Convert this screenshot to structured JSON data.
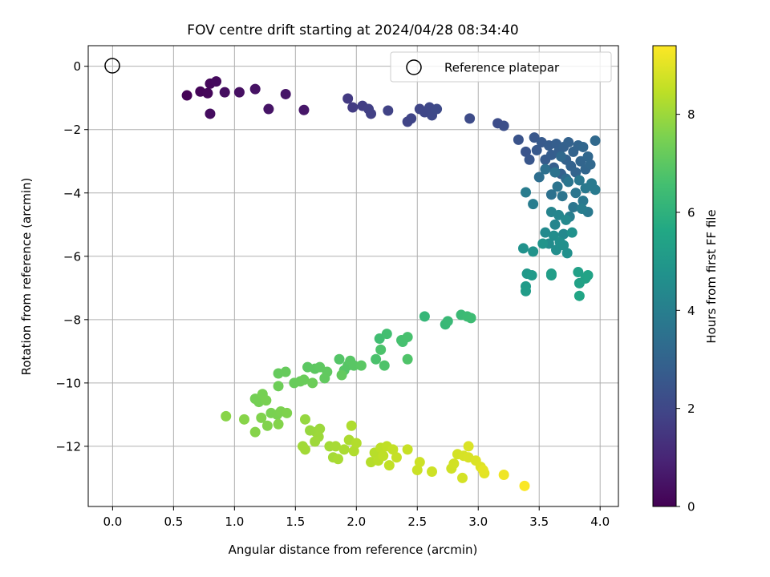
{
  "chart_data": {
    "type": "scatter",
    "title": "FOV centre drift starting at 2024/04/28 08:34:40",
    "xlabel": "Angular distance from reference (arcmin)",
    "ylabel": "Rotation from reference (arcmin)",
    "xlim": [
      -0.2,
      4.15
    ],
    "ylim": [
      -13.9,
      0.65
    ],
    "xticks": [
      "0.0",
      "0.5",
      "1.0",
      "1.5",
      "2.0",
      "2.5",
      "3.0",
      "3.5",
      "4.0"
    ],
    "yticks": [
      "0",
      "−2",
      "−4",
      "−6",
      "−8",
      "−10",
      "−12"
    ],
    "grid": true,
    "legend": {
      "placement": "top-right",
      "entries": [
        "Reference platepar"
      ]
    },
    "reference_point": {
      "x": 0.0,
      "y": 0.0
    },
    "colorbar": {
      "label": "Hours from first FF file",
      "colormap": "viridis",
      "range": [
        0,
        9.4
      ],
      "ticks": [
        "0",
        "2",
        "4",
        "6",
        "8"
      ]
    },
    "points": [
      [
        0.61,
        -0.92,
        0.05
      ],
      [
        0.72,
        -0.8,
        0.1
      ],
      [
        0.78,
        -0.85,
        0.15
      ],
      [
        0.8,
        -0.55,
        0.2
      ],
      [
        0.85,
        -0.48,
        0.25
      ],
      [
        0.8,
        -1.5,
        0.3
      ],
      [
        0.92,
        -0.82,
        0.35
      ],
      [
        1.04,
        -0.82,
        0.4
      ],
      [
        1.17,
        -0.72,
        0.45
      ],
      [
        1.28,
        -1.35,
        0.5
      ],
      [
        1.42,
        -0.88,
        0.55
      ],
      [
        1.57,
        -1.38,
        0.6
      ],
      [
        1.93,
        -1.02,
        1.6
      ],
      [
        1.97,
        -1.3,
        1.65
      ],
      [
        2.05,
        -1.25,
        1.7
      ],
      [
        2.1,
        -1.35,
        1.75
      ],
      [
        2.12,
        -1.5,
        1.8
      ],
      [
        2.26,
        -1.4,
        1.85
      ],
      [
        2.42,
        -1.75,
        1.9
      ],
      [
        2.45,
        -1.65,
        1.92
      ],
      [
        2.52,
        -1.35,
        1.95
      ],
      [
        2.56,
        -1.45,
        2.0
      ],
      [
        2.6,
        -1.3,
        2.02
      ],
      [
        2.62,
        -1.55,
        2.05
      ],
      [
        2.66,
        -1.35,
        2.08
      ],
      [
        2.93,
        -1.65,
        2.15
      ],
      [
        3.16,
        -1.8,
        2.2
      ],
      [
        3.21,
        -1.88,
        2.25
      ],
      [
        3.33,
        -2.32,
        2.4
      ],
      [
        3.39,
        -2.7,
        2.45
      ],
      [
        3.42,
        -2.95,
        2.5
      ],
      [
        3.46,
        -2.25,
        2.55
      ],
      [
        3.48,
        -2.65,
        2.6
      ],
      [
        3.52,
        -2.4,
        2.65
      ],
      [
        3.55,
        -2.95,
        2.7
      ],
      [
        3.58,
        -2.5,
        2.72
      ],
      [
        3.6,
        -2.8,
        2.75
      ],
      [
        3.62,
        -3.2,
        2.78
      ],
      [
        3.64,
        -2.45,
        2.8
      ],
      [
        3.66,
        -2.7,
        2.82
      ],
      [
        3.68,
        -3.4,
        2.85
      ],
      [
        3.7,
        -2.55,
        2.88
      ],
      [
        3.72,
        -2.95,
        2.9
      ],
      [
        3.74,
        -2.4,
        2.92
      ],
      [
        3.76,
        -3.15,
        2.95
      ],
      [
        3.78,
        -2.7,
        2.98
      ],
      [
        3.8,
        -3.35,
        3.0
      ],
      [
        3.82,
        -2.5,
        3.02
      ],
      [
        3.84,
        -3.0,
        3.05
      ],
      [
        3.86,
        -2.55,
        3.08
      ],
      [
        3.88,
        -3.25,
        3.1
      ],
      [
        3.9,
        -2.85,
        3.12
      ],
      [
        3.92,
        -3.1,
        3.15
      ],
      [
        3.96,
        -2.35,
        3.18
      ],
      [
        3.68,
        -2.85,
        3.2
      ],
      [
        3.72,
        -3.55,
        3.22
      ],
      [
        3.5,
        -3.5,
        3.4
      ],
      [
        3.55,
        -3.25,
        3.45
      ],
      [
        3.6,
        -4.05,
        3.5
      ],
      [
        3.63,
        -3.35,
        3.55
      ],
      [
        3.65,
        -3.8,
        3.6
      ],
      [
        3.69,
        -4.1,
        3.62
      ],
      [
        3.74,
        -3.65,
        3.65
      ],
      [
        3.78,
        -4.45,
        3.68
      ],
      [
        3.8,
        -4.0,
        3.7
      ],
      [
        3.83,
        -3.6,
        3.72
      ],
      [
        3.86,
        -4.25,
        3.75
      ],
      [
        3.88,
        -3.85,
        3.78
      ],
      [
        3.9,
        -4.6,
        3.8
      ],
      [
        3.93,
        -3.7,
        3.82
      ],
      [
        3.96,
        -3.9,
        3.85
      ],
      [
        3.39,
        -3.98,
        3.9
      ],
      [
        3.45,
        -4.35,
        3.92
      ],
      [
        3.85,
        -4.5,
        3.95
      ],
      [
        3.75,
        -4.75,
        3.98
      ],
      [
        3.6,
        -4.6,
        4.2
      ],
      [
        3.63,
        -5.0,
        4.25
      ],
      [
        3.66,
        -4.7,
        4.3
      ],
      [
        3.7,
        -5.3,
        4.35
      ],
      [
        3.72,
        -4.85,
        4.4
      ],
      [
        3.55,
        -5.25,
        4.45
      ],
      [
        3.58,
        -5.6,
        4.5
      ],
      [
        3.62,
        -5.35,
        4.55
      ],
      [
        3.64,
        -5.8,
        4.6
      ],
      [
        3.67,
        -5.55,
        4.62
      ],
      [
        3.7,
        -5.65,
        4.65
      ],
      [
        3.73,
        -5.9,
        4.68
      ],
      [
        3.77,
        -5.25,
        4.7
      ],
      [
        3.37,
        -5.75,
        4.75
      ],
      [
        3.45,
        -5.85,
        4.8
      ],
      [
        3.53,
        -5.6,
        4.82
      ],
      [
        3.4,
        -6.55,
        5.0
      ],
      [
        3.44,
        -6.6,
        5.05
      ],
      [
        3.39,
        -6.95,
        5.1
      ],
      [
        3.39,
        -7.1,
        5.15
      ],
      [
        3.6,
        -6.6,
        5.2
      ],
      [
        3.6,
        -6.55,
        5.22
      ],
      [
        3.82,
        -6.5,
        5.3
      ],
      [
        3.83,
        -6.85,
        5.35
      ],
      [
        3.88,
        -6.7,
        5.4
      ],
      [
        3.9,
        -6.6,
        5.45
      ],
      [
        3.83,
        -7.25,
        5.5
      ],
      [
        2.56,
        -7.9,
        6.2
      ],
      [
        2.73,
        -8.15,
        6.25
      ],
      [
        2.75,
        -8.05,
        6.3
      ],
      [
        2.86,
        -7.85,
        6.35
      ],
      [
        2.91,
        -7.9,
        6.4
      ],
      [
        2.94,
        -7.95,
        6.42
      ],
      [
        2.19,
        -8.6,
        6.5
      ],
      [
        2.25,
        -8.45,
        6.55
      ],
      [
        2.37,
        -8.65,
        6.6
      ],
      [
        2.38,
        -8.7,
        6.62
      ],
      [
        2.42,
        -8.55,
        6.65
      ],
      [
        2.16,
        -9.25,
        6.7
      ],
      [
        2.2,
        -8.95,
        6.72
      ],
      [
        2.23,
        -9.45,
        6.75
      ],
      [
        2.42,
        -9.25,
        6.78
      ],
      [
        1.86,
        -9.25,
        6.85
      ],
      [
        1.9,
        -9.6,
        6.88
      ],
      [
        1.93,
        -9.45,
        6.9
      ],
      [
        1.95,
        -9.3,
        6.92
      ],
      [
        1.98,
        -9.45,
        6.95
      ],
      [
        2.04,
        -9.45,
        6.98
      ],
      [
        1.6,
        -9.5,
        7.0
      ],
      [
        1.66,
        -9.55,
        7.02
      ],
      [
        1.7,
        -9.5,
        7.05
      ],
      [
        1.76,
        -9.65,
        7.08
      ],
      [
        1.74,
        -9.85,
        7.1
      ],
      [
        1.88,
        -9.75,
        7.12
      ],
      [
        1.36,
        -9.7,
        7.15
      ],
      [
        1.42,
        -9.65,
        7.18
      ],
      [
        1.49,
        -10.0,
        7.2
      ],
      [
        1.54,
        -9.95,
        7.22
      ],
      [
        1.57,
        -9.9,
        7.25
      ],
      [
        1.64,
        -10.0,
        7.28
      ],
      [
        1.36,
        -10.1,
        7.3
      ],
      [
        1.17,
        -10.5,
        7.4
      ],
      [
        1.2,
        -10.6,
        7.42
      ],
      [
        1.23,
        -10.35,
        7.45
      ],
      [
        1.26,
        -10.55,
        7.48
      ],
      [
        1.3,
        -10.95,
        7.5
      ],
      [
        1.35,
        -11.0,
        7.52
      ],
      [
        1.38,
        -10.9,
        7.55
      ],
      [
        1.43,
        -10.95,
        7.58
      ],
      [
        1.22,
        -11.1,
        7.6
      ],
      [
        1.27,
        -11.35,
        7.62
      ],
      [
        1.36,
        -11.3,
        7.65
      ],
      [
        1.17,
        -11.55,
        7.68
      ],
      [
        1.08,
        -11.15,
        7.7
      ],
      [
        0.93,
        -11.05,
        7.72
      ],
      [
        1.58,
        -11.15,
        7.9
      ],
      [
        1.62,
        -11.5,
        7.92
      ],
      [
        1.67,
        -11.55,
        7.95
      ],
      [
        1.7,
        -11.45,
        7.98
      ],
      [
        1.69,
        -11.7,
        8.0
      ],
      [
        1.66,
        -11.85,
        8.02
      ],
      [
        1.56,
        -12.0,
        8.05
      ],
      [
        1.58,
        -12.1,
        8.08
      ],
      [
        1.78,
        -12.0,
        8.1
      ],
      [
        1.81,
        -12.35,
        8.12
      ],
      [
        1.83,
        -12.0,
        8.15
      ],
      [
        1.85,
        -12.4,
        8.18
      ],
      [
        1.9,
        -12.1,
        8.2
      ],
      [
        1.94,
        -11.8,
        8.22
      ],
      [
        1.96,
        -11.35,
        8.25
      ],
      [
        1.98,
        -12.15,
        8.28
      ],
      [
        2.0,
        -11.9,
        8.3
      ],
      [
        2.12,
        -12.5,
        8.35
      ],
      [
        2.15,
        -12.2,
        8.38
      ],
      [
        2.18,
        -12.45,
        8.4
      ],
      [
        2.2,
        -12.05,
        8.45
      ],
      [
        2.22,
        -12.3,
        8.48
      ],
      [
        2.25,
        -12.0,
        8.5
      ],
      [
        2.27,
        -12.6,
        8.52
      ],
      [
        2.3,
        -12.1,
        8.55
      ],
      [
        2.33,
        -12.35,
        8.58
      ],
      [
        2.42,
        -12.1,
        8.6
      ],
      [
        2.5,
        -12.75,
        8.65
      ],
      [
        2.52,
        -12.5,
        8.68
      ],
      [
        2.62,
        -12.8,
        8.7
      ],
      [
        2.78,
        -12.7,
        8.72
      ],
      [
        2.8,
        -12.55,
        8.75
      ],
      [
        2.83,
        -12.25,
        8.78
      ],
      [
        2.87,
        -13.0,
        8.8
      ],
      [
        2.88,
        -12.3,
        8.82
      ],
      [
        2.92,
        -12.35,
        8.85
      ],
      [
        2.92,
        -12.0,
        8.88
      ],
      [
        2.98,
        -12.45,
        8.9
      ],
      [
        3.02,
        -12.65,
        8.95
      ],
      [
        3.05,
        -12.85,
        9.0
      ],
      [
        3.04,
        -12.75,
        9.05
      ],
      [
        3.21,
        -12.9,
        9.2
      ],
      [
        3.38,
        -13.25,
        9.35
      ]
    ]
  }
}
